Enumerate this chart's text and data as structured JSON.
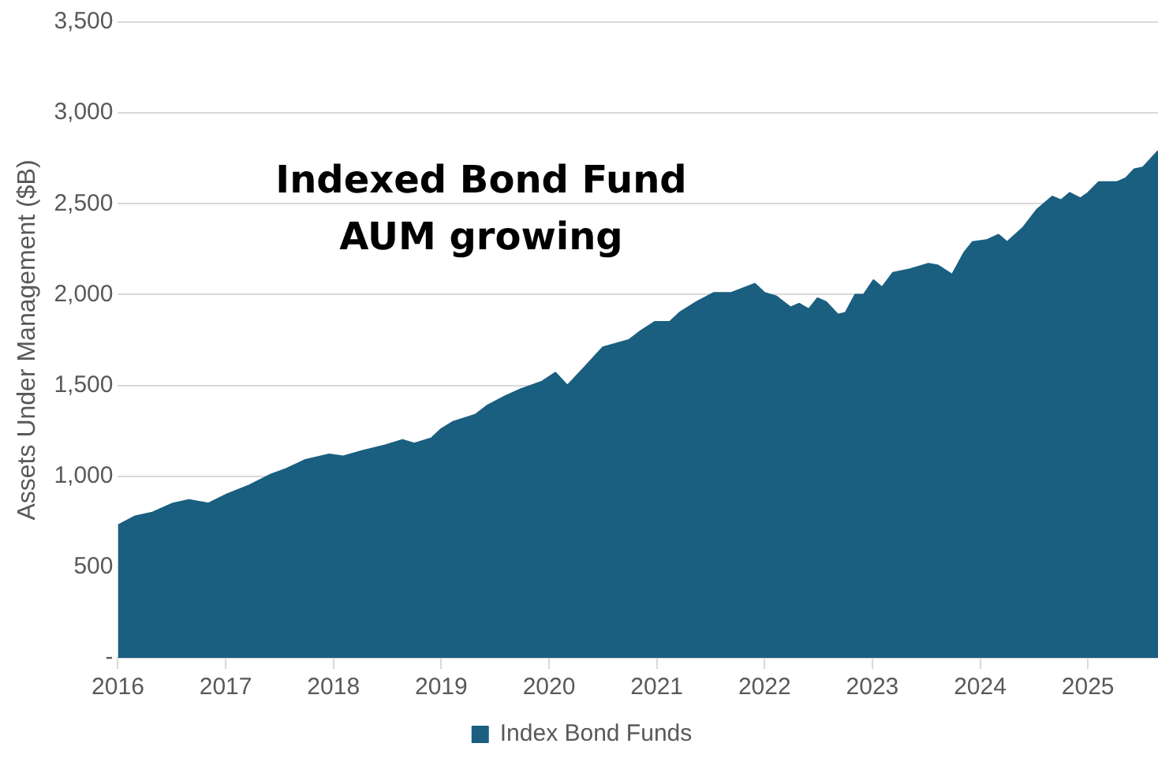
{
  "chart_data": {
    "type": "area",
    "title": "Indexed Bond Fund\nAUM growing",
    "ylabel": "Assets Under Management ($B)",
    "x": [
      2016.0,
      2016.16,
      2016.32,
      2016.51,
      2016.66,
      2016.84,
      2017.01,
      2017.22,
      2017.42,
      2017.56,
      2017.74,
      2017.96,
      2018.09,
      2018.27,
      2018.48,
      2018.64,
      2018.75,
      2018.91,
      2019.0,
      2019.11,
      2019.32,
      2019.43,
      2019.59,
      2019.74,
      2019.93,
      2020.06,
      2020.17,
      2020.33,
      2020.5,
      2020.74,
      2020.85,
      2020.98,
      2021.12,
      2021.21,
      2021.37,
      2021.53,
      2021.69,
      2021.91,
      2022.0,
      2022.11,
      2022.24,
      2022.32,
      2022.41,
      2022.49,
      2022.57,
      2022.68,
      2022.75,
      2022.84,
      2022.92,
      2023.01,
      2023.09,
      2023.19,
      2023.35,
      2023.52,
      2023.61,
      2023.74,
      2023.85,
      2023.93,
      2024.06,
      2024.17,
      2024.25,
      2024.4,
      2024.53,
      2024.67,
      2024.75,
      2024.83,
      2024.93,
      2025.0,
      2025.1,
      2025.27,
      2025.35,
      2025.43,
      2025.51,
      2025.65
    ],
    "series": [
      {
        "name": "Index Bond Funds",
        "color": "#1a5f80",
        "values": [
          730,
          780,
          800,
          850,
          870,
          850,
          900,
          950,
          1010,
          1040,
          1090,
          1120,
          1110,
          1140,
          1170,
          1200,
          1180,
          1210,
          1260,
          1300,
          1340,
          1390,
          1440,
          1480,
          1520,
          1570,
          1500,
          1600,
          1710,
          1750,
          1800,
          1850,
          1850,
          1900,
          1960,
          2010,
          2010,
          2060,
          2010,
          1990,
          1930,
          1950,
          1920,
          1980,
          1960,
          1890,
          1900,
          2000,
          2000,
          2080,
          2040,
          2120,
          2140,
          2170,
          2160,
          2110,
          2230,
          2290,
          2300,
          2330,
          2290,
          2370,
          2470,
          2540,
          2520,
          2560,
          2530,
          2560,
          2620,
          2620,
          2640,
          2690,
          2700,
          2790
        ]
      }
    ],
    "xlim": [
      2016,
      2025.65
    ],
    "xticks": [
      2016,
      2017,
      2018,
      2019,
      2020,
      2021,
      2022,
      2023,
      2024,
      2025
    ],
    "ylim": [
      0,
      3500
    ],
    "yticks": [
      {
        "value": 0,
        "label": "-"
      },
      500,
      {
        "value": 1000,
        "label": "1,000"
      },
      {
        "value": 1500,
        "label": "1,500"
      },
      {
        "value": 2000,
        "label": "2,000"
      },
      {
        "value": 2500,
        "label": "2,500"
      },
      {
        "value": 3000,
        "label": "3,000"
      },
      {
        "value": 3500,
        "label": "3,500"
      }
    ],
    "grid": "y",
    "legend": "bottom",
    "marker": "none"
  }
}
